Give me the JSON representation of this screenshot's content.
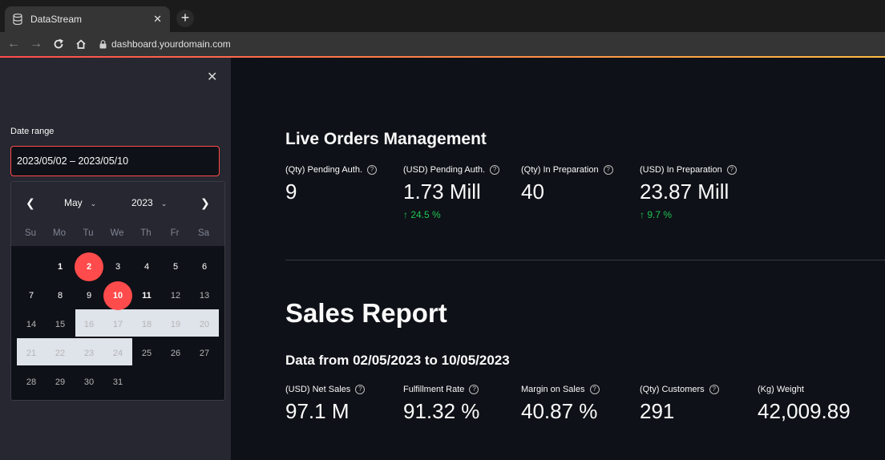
{
  "browser": {
    "tab_title": "DataStream",
    "url": "dashboard.yourdomain.com",
    "new_tab": "+",
    "close": "✕"
  },
  "sidebar": {
    "close": "✕",
    "date_range_label": "Date range",
    "date_range_value": "2023/05/02 – 2023/05/10",
    "calendar": {
      "month": "May",
      "year": "2023",
      "weekdays": [
        "Su",
        "Mo",
        "Tu",
        "We",
        "Th",
        "Fr",
        "Sa"
      ],
      "days": [
        "1",
        "2",
        "3",
        "4",
        "5",
        "6",
        "7",
        "8",
        "9",
        "10",
        "11",
        "12",
        "13",
        "14",
        "15",
        "16",
        "17",
        "18",
        "19",
        "20",
        "21",
        "22",
        "23",
        "24",
        "25",
        "26",
        "27",
        "28",
        "29",
        "30",
        "31"
      ],
      "first_weekday_index": 1,
      "range_start": 2,
      "range_end": 10
    }
  },
  "live": {
    "title": "Live Orders Management",
    "metrics": [
      {
        "label": "(Qty) Pending Auth.",
        "value": "9",
        "delta": ""
      },
      {
        "label": "(USD) Pending Auth.",
        "value": "1.73 Mill",
        "delta": "↑ 24.5 %"
      },
      {
        "label": "(Qty) In Preparation",
        "value": "40",
        "delta": ""
      },
      {
        "label": "(USD) In Preparation",
        "value": "23.87 Mill",
        "delta": "↑ 9.7 %"
      }
    ]
  },
  "sales": {
    "title": "Sales Report",
    "subtitle": "Data from 02/05/2023 to 10/05/2023",
    "metrics": [
      {
        "label": "(USD) Net Sales",
        "value": "97.1 M"
      },
      {
        "label": "Fulfillment Rate",
        "value": "91.32 %"
      },
      {
        "label": "Margin on Sales",
        "value": "40.87 %"
      },
      {
        "label": "(Qty) Customers",
        "value": "291"
      },
      {
        "label": "(Kg) Weight",
        "value": "42,009.89"
      }
    ]
  },
  "colors": {
    "accent": "#ff4b4b",
    "positive": "#21c354",
    "sidebar_bg": "#262730",
    "main_bg": "#0e1117"
  }
}
